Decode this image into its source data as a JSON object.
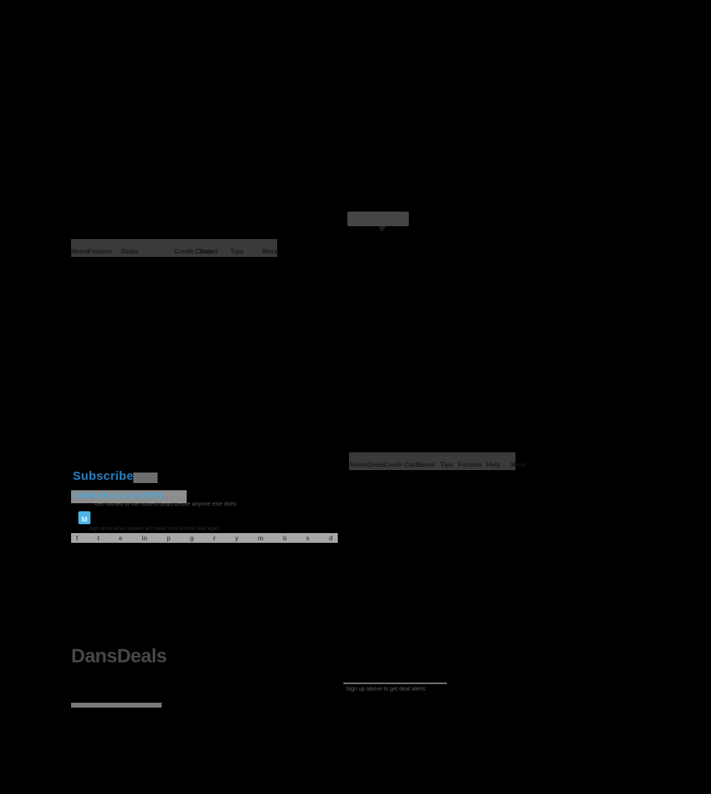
{
  "colors": {
    "background": "#000000",
    "navbar_bg": "#3a3a3a",
    "tooltip_bg": "#454545",
    "accent_blue": "#2980c4",
    "light_blue": "#45a8dd",
    "badge_blue": "#4db4e6",
    "highlight_gray": "#8d8d8d",
    "input_gray": "#a8a8a8",
    "logo_gray": "#474747"
  },
  "nav_primary": {
    "items": [
      "Home",
      "Forums",
      "Deals",
      "Credit Cards",
      "Travel",
      "Tips",
      "More"
    ]
  },
  "nav_secondary": {
    "items": [
      "Home",
      "Deals",
      "Credit Cards",
      "Travel",
      "Tips",
      "Forums",
      "Help",
      "More"
    ]
  },
  "sidebar": {
    "heading": "Subscribe",
    "promo": "DANSDEALS-ALERTS",
    "promo_sub": "Get notified of the hottest deals before anyone else does",
    "badge_glyph": "M",
    "fineprint": "Sign up for email updates and never miss another deal again",
    "social_icons": [
      "f",
      "t",
      "e",
      "in",
      "p",
      "g",
      "r",
      "y",
      "m",
      "b",
      "s",
      "d"
    ]
  },
  "logo": {
    "text": "DansDeals"
  },
  "caption": {
    "text": "Sign up above to get deal alerts"
  }
}
